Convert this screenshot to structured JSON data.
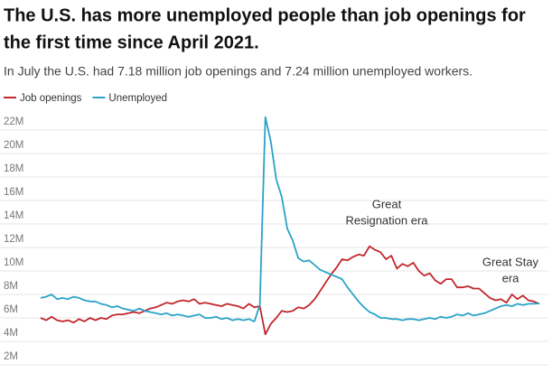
{
  "chart_data": {
    "type": "line",
    "title": [
      "The U.S. has more unemployed people than job openings for",
      "the first time since April 2021."
    ],
    "subtitle": "In July the U.S. had 7.18 million job openings and 7.24 million unemployed workers.",
    "categories": [
      null,
      null,
      null,
      null,
      null,
      null,
      null,
      null,
      null,
      null,
      null,
      null,
      null,
      null,
      null,
      null,
      null,
      null,
      null,
      null,
      null,
      null,
      null,
      null,
      null,
      null,
      null,
      null,
      null,
      null,
      null,
      null,
      null,
      null,
      null,
      null,
      null,
      null,
      null,
      null,
      null,
      null,
      null,
      null,
      null,
      null,
      null,
      null,
      null,
      null,
      null,
      null,
      null,
      null,
      null,
      null,
      null,
      null,
      null,
      null,
      null,
      null,
      null,
      null,
      null,
      null,
      null,
      null,
      null,
      null,
      null,
      null,
      null,
      null,
      null,
      null,
      null,
      null,
      null,
      null,
      null,
      null,
      null,
      null,
      null,
      null,
      null,
      null,
      null,
      null,
      null,
      null
    ],
    "series": [
      {
        "name": "Job openings",
        "color": "#c1272d",
        "values": [
          6.0,
          5.8,
          6.1,
          5.8,
          5.7,
          5.8,
          5.6,
          5.9,
          5.7,
          6.0,
          5.8,
          6.0,
          5.9,
          6.2,
          6.3,
          6.3,
          6.4,
          6.5,
          6.4,
          6.6,
          6.8,
          6.9,
          7.1,
          7.3,
          7.2,
          7.4,
          7.5,
          7.4,
          7.6,
          7.2,
          7.3,
          7.2,
          7.1,
          7.0,
          7.2,
          7.1,
          7.0,
          6.8,
          7.2,
          6.9,
          7.0,
          4.6,
          5.5,
          6.0,
          6.6,
          6.5,
          6.6,
          6.9,
          6.8,
          7.1,
          7.6,
          8.3,
          9.0,
          9.7,
          10.3,
          11.0,
          10.9,
          11.2,
          11.4,
          11.3,
          12.1,
          11.8,
          11.6,
          11.0,
          11.3,
          10.2,
          10.6,
          10.4,
          10.7,
          10.0,
          9.6,
          9.8,
          9.2,
          8.9,
          9.3,
          9.3,
          8.6,
          8.6,
          8.7,
          8.5,
          8.5,
          8.1,
          7.7,
          7.5,
          7.6,
          7.3,
          8.0,
          7.6,
          7.9,
          7.5,
          7.4,
          7.2
        ]
      },
      {
        "name": "Unemployed",
        "color": "#2aa3c8",
        "values": [
          7.7,
          7.8,
          8.0,
          7.6,
          7.7,
          7.6,
          7.8,
          7.7,
          7.5,
          7.4,
          7.4,
          7.2,
          7.1,
          6.9,
          7.0,
          6.8,
          6.7,
          6.6,
          6.8,
          6.6,
          6.5,
          6.4,
          6.3,
          6.4,
          6.2,
          6.3,
          6.2,
          6.1,
          6.2,
          6.3,
          6.0,
          6.0,
          6.1,
          5.9,
          6.0,
          5.8,
          5.9,
          5.8,
          5.9,
          5.7,
          7.1,
          23.1,
          21.0,
          17.8,
          16.3,
          13.6,
          12.6,
          11.1,
          10.8,
          10.9,
          10.5,
          10.1,
          9.9,
          9.7,
          9.5,
          9.3,
          8.6,
          8.0,
          7.4,
          6.9,
          6.5,
          6.3,
          6.0,
          6.0,
          5.9,
          5.9,
          5.8,
          5.9,
          5.9,
          5.8,
          5.9,
          6.0,
          5.9,
          6.1,
          6.0,
          6.1,
          6.3,
          6.2,
          6.4,
          6.2,
          6.3,
          6.4,
          6.6,
          6.8,
          7.0,
          7.1,
          7.0,
          7.2,
          7.1,
          7.2,
          7.2,
          7.24
        ]
      }
    ],
    "ylim": [
      2,
      23.5
    ],
    "yticks": [
      {
        "value": 2,
        "label": "2M"
      },
      {
        "value": 4,
        "label": "4M"
      },
      {
        "value": 6,
        "label": "6M"
      },
      {
        "value": 8,
        "label": "8M"
      },
      {
        "value": 10,
        "label": "10M"
      },
      {
        "value": 12,
        "label": "12M"
      },
      {
        "value": 14,
        "label": "14M"
      },
      {
        "value": 16,
        "label": "16M"
      },
      {
        "value": 18,
        "label": "18M"
      },
      {
        "value": 20,
        "label": "20M"
      },
      {
        "value": 22,
        "label": "22M"
      }
    ],
    "grid": true,
    "annotations": [
      {
        "lines": [
          "Great",
          "Resignation era"
        ]
      },
      {
        "lines": [
          "Great Stay",
          "era"
        ]
      }
    ]
  }
}
